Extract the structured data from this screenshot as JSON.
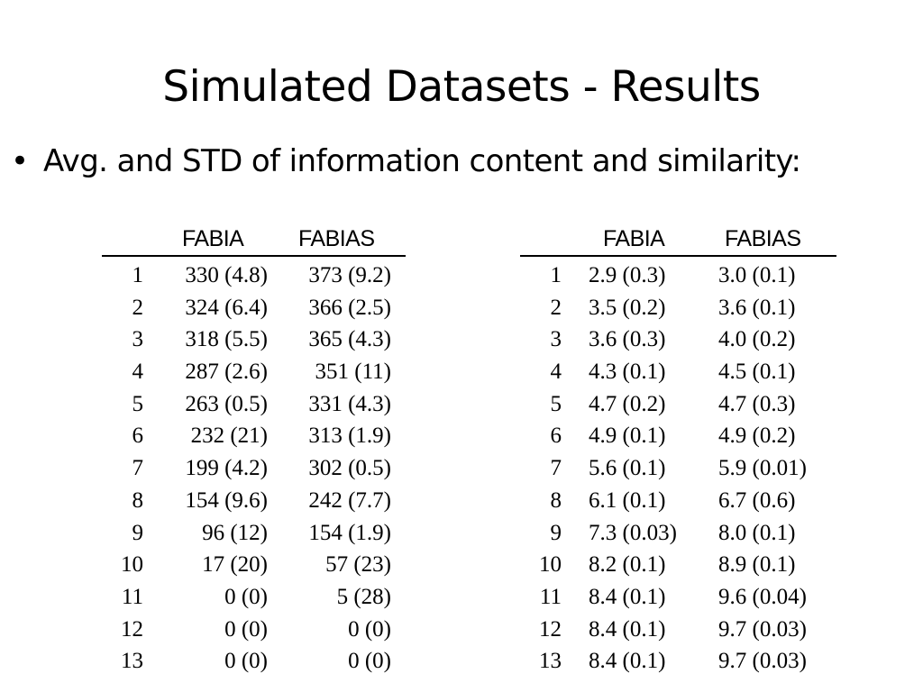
{
  "slide": {
    "title": "Simulated Datasets - Results",
    "bullet_marker": "•",
    "bullet": "Avg. and STD of information content and similarity:"
  },
  "tables": [
    {
      "headers": [
        "FABIA",
        "FABIAS"
      ],
      "rows": [
        {
          "idx": "1",
          "fabia": "330 (4.8)",
          "fabias": "373 (9.2)"
        },
        {
          "idx": "2",
          "fabia": "324 (6.4)",
          "fabias": "366 (2.5)"
        },
        {
          "idx": "3",
          "fabia": "318 (5.5)",
          "fabias": "365 (4.3)"
        },
        {
          "idx": "4",
          "fabia": "287 (2.6)",
          "fabias": "351 (11)"
        },
        {
          "idx": "5",
          "fabia": "263 (0.5)",
          "fabias": "331 (4.3)"
        },
        {
          "idx": "6",
          "fabia": "232 (21)",
          "fabias": "313 (1.9)"
        },
        {
          "idx": "7",
          "fabia": "199 (4.2)",
          "fabias": "302 (0.5)"
        },
        {
          "idx": "8",
          "fabia": "154 (9.6)",
          "fabias": "242 (7.7)"
        },
        {
          "idx": "9",
          "fabia": "96 (12)",
          "fabias": "154 (1.9)"
        },
        {
          "idx": "10",
          "fabia": "17 (20)",
          "fabias": "57 (23)"
        },
        {
          "idx": "11",
          "fabia": "0 (0)",
          "fabias": "5 (28)"
        },
        {
          "idx": "12",
          "fabia": "0 (0)",
          "fabias": "0 (0)"
        },
        {
          "idx": "13",
          "fabia": "0 (0)",
          "fabias": "0 (0)"
        }
      ]
    },
    {
      "headers": [
        "FABIA",
        "FABIAS"
      ],
      "rows": [
        {
          "idx": "1",
          "fabia": "2.9 (0.3)",
          "fabias": "3.0 (0.1)"
        },
        {
          "idx": "2",
          "fabia": "3.5 (0.2)",
          "fabias": "3.6 (0.1)"
        },
        {
          "idx": "3",
          "fabia": "3.6 (0.3)",
          "fabias": "4.0 (0.2)"
        },
        {
          "idx": "4",
          "fabia": "4.3 (0.1)",
          "fabias": "4.5 (0.1)"
        },
        {
          "idx": "5",
          "fabia": "4.7 (0.2)",
          "fabias": "4.7 (0.3)"
        },
        {
          "idx": "6",
          "fabia": "4.9 (0.1)",
          "fabias": "4.9 (0.2)"
        },
        {
          "idx": "7",
          "fabia": "5.6 (0.1)",
          "fabias": "5.9 (0.01)"
        },
        {
          "idx": "8",
          "fabia": "6.1 (0.1)",
          "fabias": "6.7 (0.6)"
        },
        {
          "idx": "9",
          "fabia": "7.3 (0.03)",
          "fabias": "8.0 (0.1)"
        },
        {
          "idx": "10",
          "fabia": "8.2 (0.1)",
          "fabias": "8.9 (0.1)"
        },
        {
          "idx": "11",
          "fabia": "8.4 (0.1)",
          "fabias": "9.6 (0.04)"
        },
        {
          "idx": "12",
          "fabia": "8.4 (0.1)",
          "fabias": "9.7 (0.03)"
        },
        {
          "idx": "13",
          "fabia": "8.4 (0.1)",
          "fabias": "9.7 (0.03)"
        }
      ]
    }
  ]
}
